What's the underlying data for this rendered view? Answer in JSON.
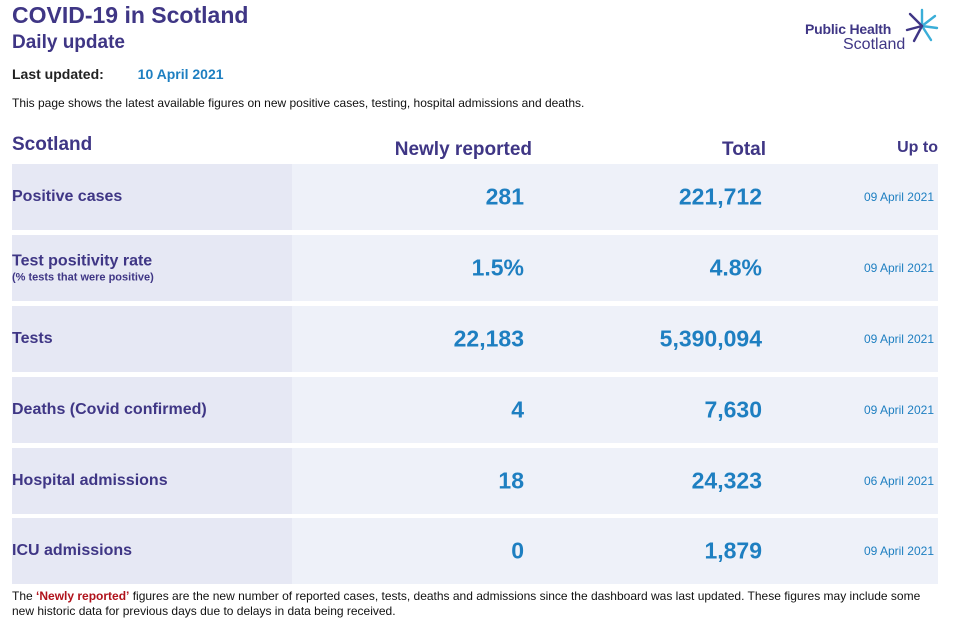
{
  "header": {
    "title": "COVID-19 in Scotland",
    "subtitle": "Daily update",
    "last_updated_label": "Last updated:",
    "last_updated_value": "10 April 2021",
    "intro": "This page shows the latest available figures on new positive cases, testing, hospital admissions and deaths."
  },
  "logo": {
    "line1": "Public Health",
    "line2": "Scotland",
    "icon": "star-burst-icon"
  },
  "table": {
    "columns": {
      "region": "Scotland",
      "new": "Newly reported",
      "total": "Total",
      "upto": "Up to"
    },
    "rows": [
      {
        "label": "Positive cases",
        "sublabel": "",
        "new": "281",
        "total": "221,712",
        "upto": "09 April 2021"
      },
      {
        "label": "Test positivity rate",
        "sublabel": "(% tests that were positive)",
        "new": "1.5%",
        "total": "4.8%",
        "upto": "09 April 2021"
      },
      {
        "label": "Tests",
        "sublabel": "",
        "new": "22,183",
        "total": "5,390,094",
        "upto": "09 April 2021"
      },
      {
        "label": "Deaths (Covid confirmed)",
        "sublabel": "",
        "new": "4",
        "total": "7,630",
        "upto": "09 April 2021"
      },
      {
        "label": "Hospital admissions",
        "sublabel": "",
        "new": "18",
        "total": "24,323",
        "upto": "06 April 2021"
      },
      {
        "label": "ICU admissions",
        "sublabel": "",
        "new": "0",
        "total": "1,879",
        "upto": "09 April 2021"
      }
    ]
  },
  "footnote": {
    "prefix": "The ",
    "keyword": "‘Newly reported’",
    "suffix": " figures are the new number of reported cases, tests, deaths and admissions since the dashboard was last updated. These figures may include some new historic data for previous days due to delays in data being received."
  },
  "colors": {
    "brand_purple": "#3f3685",
    "value_blue": "#1e7fc1",
    "row_bg": "#eef1f9",
    "label_bg": "#e6e8f4",
    "keyword_red": "#b0121b"
  }
}
